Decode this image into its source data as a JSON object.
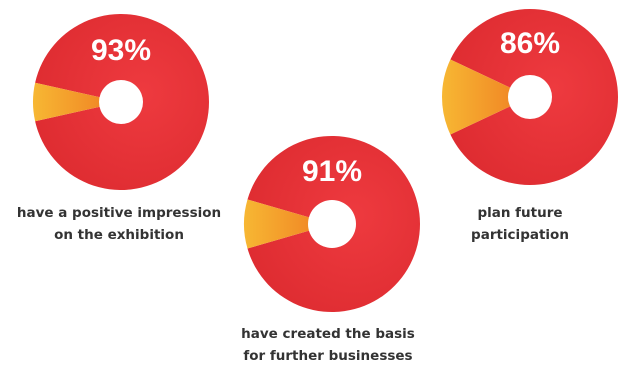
{
  "chart_data": [
    {
      "type": "pie",
      "value": 93,
      "value_label": "93%",
      "caption": [
        "have a positive impression",
        "on the exhibition"
      ],
      "colors": {
        "main": "#dc2a2f",
        "remainder": "#f5a623"
      }
    },
    {
      "type": "pie",
      "value": 91,
      "value_label": "91%",
      "caption": [
        "have created the basis",
        "for further businesses"
      ],
      "colors": {
        "main": "#dc2a2f",
        "remainder": "#f5a623"
      }
    },
    {
      "type": "pie",
      "value": 86,
      "value_label": "86%",
      "caption": [
        "plan future",
        "participation"
      ],
      "colors": {
        "main": "#dc2a2f",
        "remainder": "#f5a623"
      }
    }
  ]
}
